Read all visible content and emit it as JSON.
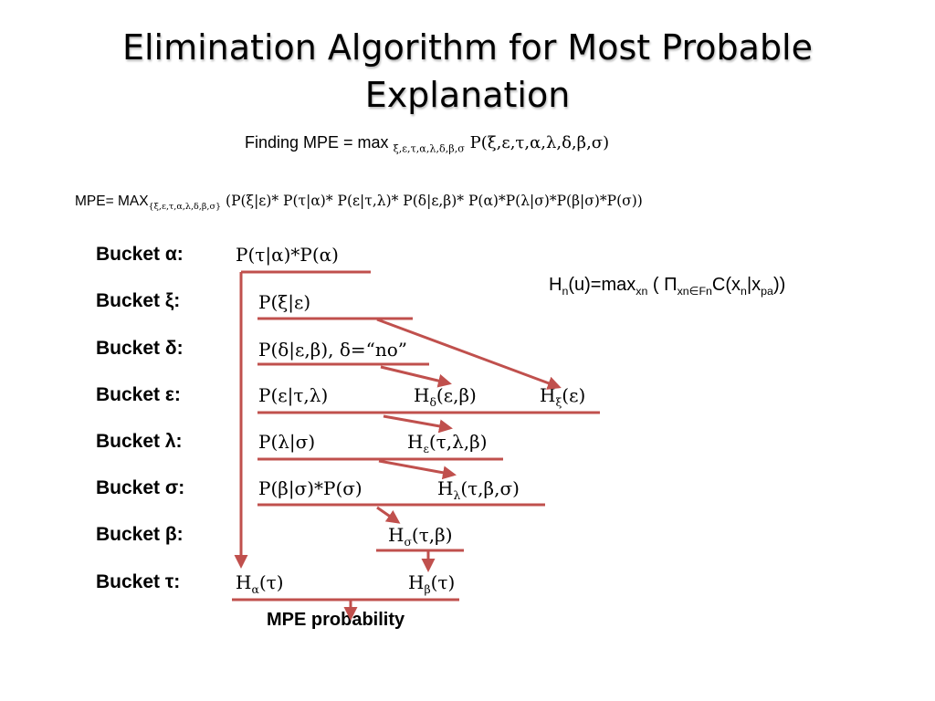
{
  "title_line1": "Elimination Algorithm for Most Probable",
  "title_line2": "Explanation",
  "finding": {
    "prefix": "Finding MPE = max ",
    "sub": "ξ,ε,τ,α,λ,δ,β,σ",
    "expr": " P(ξ,ε,τ,α,λ,δ,β,σ)"
  },
  "mpe_formula": {
    "prefix": "MPE= MAX",
    "sub": "{ξ,ε,τ,α,λ,δ,β,σ}",
    "expr": " (P(ξ|ε)* P(τ|α)* P(ε|τ,λ)* P(δ|ε,β)* P(α)*P(λ|σ)*P(β|σ)*P(σ))"
  },
  "hn_formula": {
    "a": "H",
    "a_sub": "n",
    "b": "(u)=max",
    "b_sub": "xn",
    "c": " ( Π",
    "c_sub": "xn∈Fn",
    "d": "C(x",
    "d_sub": "n",
    "e": "|x",
    "e_sub": "pa",
    "f": "))"
  },
  "buckets": [
    {
      "label": "Bucket α:",
      "func": "P(τ|α)*P(α)"
    },
    {
      "label": "Bucket ξ:",
      "func": "P(ξ|ε)"
    },
    {
      "label": "Bucket δ:",
      "func": "P(δ|ε,β), δ=“no”"
    },
    {
      "label": "Bucket ε:",
      "func": "P(ε|τ,λ)"
    },
    {
      "label": "Bucket λ:",
      "func": "P(λ|σ)"
    },
    {
      "label": "Bucket σ:",
      "func": "P(β|σ)*P(σ)"
    },
    {
      "label": "Bucket β:",
      "func": ""
    },
    {
      "label": "Bucket τ:",
      "func": ""
    }
  ],
  "messages": {
    "h_delta": {
      "h": "H",
      "sub": "δ",
      "args": "(ε,β)"
    },
    "h_xi": {
      "h": "H",
      "sub": "ξ",
      "args": "(ε)"
    },
    "h_eps": {
      "h": "H",
      "sub": "ε",
      "args": "(τ,λ,β)"
    },
    "h_lambda": {
      "h": "H",
      "sub": "λ",
      "args": "(τ,β,σ)"
    },
    "h_sigma": {
      "h": "H",
      "sub": "σ",
      "args": "(τ,β)"
    },
    "h_alpha": {
      "h": "H",
      "sub": "α",
      "args": "(τ)"
    },
    "h_beta": {
      "h": "H",
      "sub": "β",
      "args": "(τ)"
    }
  },
  "bottom_label": "MPE probability",
  "colors": {
    "arrow": "#c0504d",
    "text": "#000000"
  }
}
